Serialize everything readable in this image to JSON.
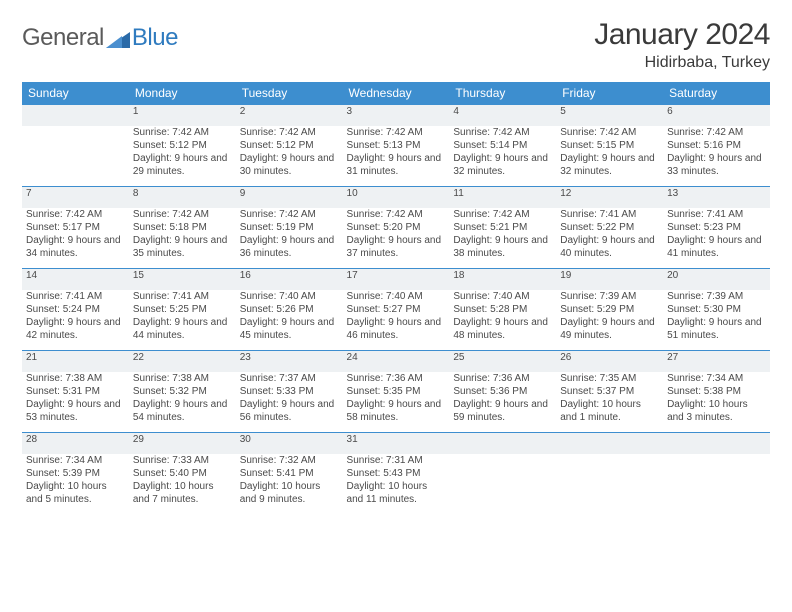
{
  "brand": {
    "part1": "General",
    "part2": "Blue",
    "accent": "#2f7bbf",
    "tri_fill": "#2a6aa8",
    "text_color": "#5a5a5a"
  },
  "title": "January 2024",
  "location": "Hidirbaba, Turkey",
  "colors": {
    "header_bg": "#3d8ecf",
    "header_fg": "#ffffff",
    "row_rule": "#3d8ecf",
    "daynum_bg": "#eef1f3",
    "text": "#4a4a4a"
  },
  "weekdays": [
    "Sunday",
    "Monday",
    "Tuesday",
    "Wednesday",
    "Thursday",
    "Friday",
    "Saturday"
  ],
  "weeks": [
    {
      "nums": [
        "",
        "1",
        "2",
        "3",
        "4",
        "5",
        "6"
      ],
      "cells": [
        [],
        [
          "Sunrise: 7:42 AM",
          "Sunset: 5:12 PM",
          "Daylight: 9 hours and 29 minutes."
        ],
        [
          "Sunrise: 7:42 AM",
          "Sunset: 5:12 PM",
          "Daylight: 9 hours and 30 minutes."
        ],
        [
          "Sunrise: 7:42 AM",
          "Sunset: 5:13 PM",
          "Daylight: 9 hours and 31 minutes."
        ],
        [
          "Sunrise: 7:42 AM",
          "Sunset: 5:14 PM",
          "Daylight: 9 hours and 32 minutes."
        ],
        [
          "Sunrise: 7:42 AM",
          "Sunset: 5:15 PM",
          "Daylight: 9 hours and 32 minutes."
        ],
        [
          "Sunrise: 7:42 AM",
          "Sunset: 5:16 PM",
          "Daylight: 9 hours and 33 minutes."
        ]
      ]
    },
    {
      "nums": [
        "7",
        "8",
        "9",
        "10",
        "11",
        "12",
        "13"
      ],
      "cells": [
        [
          "Sunrise: 7:42 AM",
          "Sunset: 5:17 PM",
          "Daylight: 9 hours and 34 minutes."
        ],
        [
          "Sunrise: 7:42 AM",
          "Sunset: 5:18 PM",
          "Daylight: 9 hours and 35 minutes."
        ],
        [
          "Sunrise: 7:42 AM",
          "Sunset: 5:19 PM",
          "Daylight: 9 hours and 36 minutes."
        ],
        [
          "Sunrise: 7:42 AM",
          "Sunset: 5:20 PM",
          "Daylight: 9 hours and 37 minutes."
        ],
        [
          "Sunrise: 7:42 AM",
          "Sunset: 5:21 PM",
          "Daylight: 9 hours and 38 minutes."
        ],
        [
          "Sunrise: 7:41 AM",
          "Sunset: 5:22 PM",
          "Daylight: 9 hours and 40 minutes."
        ],
        [
          "Sunrise: 7:41 AM",
          "Sunset: 5:23 PM",
          "Daylight: 9 hours and 41 minutes."
        ]
      ]
    },
    {
      "nums": [
        "14",
        "15",
        "16",
        "17",
        "18",
        "19",
        "20"
      ],
      "cells": [
        [
          "Sunrise: 7:41 AM",
          "Sunset: 5:24 PM",
          "Daylight: 9 hours and 42 minutes."
        ],
        [
          "Sunrise: 7:41 AM",
          "Sunset: 5:25 PM",
          "Daylight: 9 hours and 44 minutes."
        ],
        [
          "Sunrise: 7:40 AM",
          "Sunset: 5:26 PM",
          "Daylight: 9 hours and 45 minutes."
        ],
        [
          "Sunrise: 7:40 AM",
          "Sunset: 5:27 PM",
          "Daylight: 9 hours and 46 minutes."
        ],
        [
          "Sunrise: 7:40 AM",
          "Sunset: 5:28 PM",
          "Daylight: 9 hours and 48 minutes."
        ],
        [
          "Sunrise: 7:39 AM",
          "Sunset: 5:29 PM",
          "Daylight: 9 hours and 49 minutes."
        ],
        [
          "Sunrise: 7:39 AM",
          "Sunset: 5:30 PM",
          "Daylight: 9 hours and 51 minutes."
        ]
      ]
    },
    {
      "nums": [
        "21",
        "22",
        "23",
        "24",
        "25",
        "26",
        "27"
      ],
      "cells": [
        [
          "Sunrise: 7:38 AM",
          "Sunset: 5:31 PM",
          "Daylight: 9 hours and 53 minutes."
        ],
        [
          "Sunrise: 7:38 AM",
          "Sunset: 5:32 PM",
          "Daylight: 9 hours and 54 minutes."
        ],
        [
          "Sunrise: 7:37 AM",
          "Sunset: 5:33 PM",
          "Daylight: 9 hours and 56 minutes."
        ],
        [
          "Sunrise: 7:36 AM",
          "Sunset: 5:35 PM",
          "Daylight: 9 hours and 58 minutes."
        ],
        [
          "Sunrise: 7:36 AM",
          "Sunset: 5:36 PM",
          "Daylight: 9 hours and 59 minutes."
        ],
        [
          "Sunrise: 7:35 AM",
          "Sunset: 5:37 PM",
          "Daylight: 10 hours and 1 minute."
        ],
        [
          "Sunrise: 7:34 AM",
          "Sunset: 5:38 PM",
          "Daylight: 10 hours and 3 minutes."
        ]
      ]
    },
    {
      "nums": [
        "28",
        "29",
        "30",
        "31",
        "",
        "",
        ""
      ],
      "cells": [
        [
          "Sunrise: 7:34 AM",
          "Sunset: 5:39 PM",
          "Daylight: 10 hours and 5 minutes."
        ],
        [
          "Sunrise: 7:33 AM",
          "Sunset: 5:40 PM",
          "Daylight: 10 hours and 7 minutes."
        ],
        [
          "Sunrise: 7:32 AM",
          "Sunset: 5:41 PM",
          "Daylight: 10 hours and 9 minutes."
        ],
        [
          "Sunrise: 7:31 AM",
          "Sunset: 5:43 PM",
          "Daylight: 10 hours and 11 minutes."
        ],
        [],
        [],
        []
      ]
    }
  ]
}
